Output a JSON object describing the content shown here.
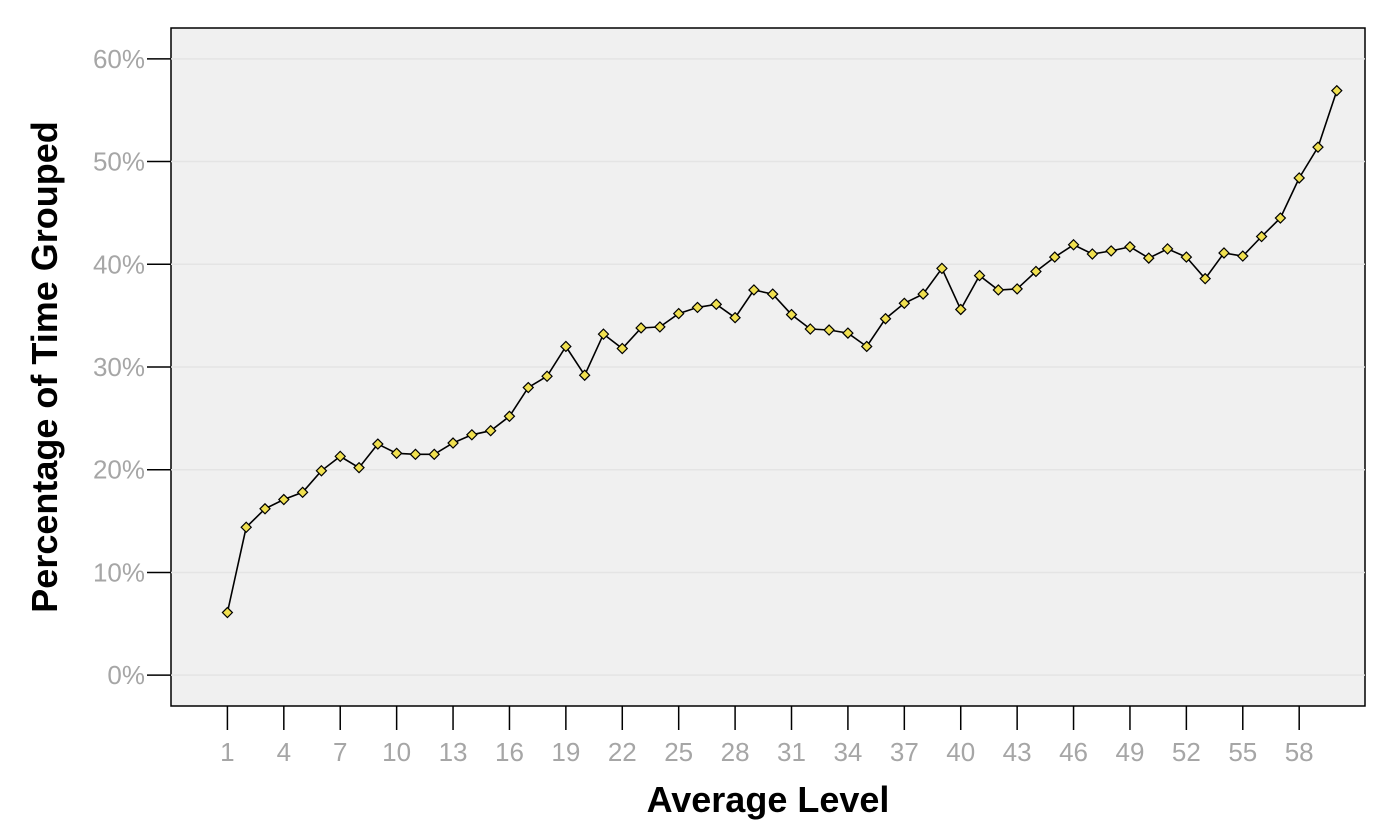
{
  "chart_data": {
    "type": "line",
    "title": "",
    "xlabel": "Average Level",
    "ylabel": "Percentage of Time Grouped",
    "x": [
      1,
      2,
      3,
      4,
      5,
      6,
      7,
      8,
      9,
      10,
      11,
      12,
      13,
      14,
      15,
      16,
      17,
      18,
      19,
      20,
      21,
      22,
      23,
      24,
      25,
      26,
      27,
      28,
      29,
      30,
      31,
      32,
      33,
      34,
      35,
      36,
      37,
      38,
      39,
      40,
      41,
      42,
      43,
      44,
      45,
      46,
      47,
      48,
      49,
      50,
      51,
      52,
      53,
      54,
      55,
      56,
      57,
      58,
      59,
      60
    ],
    "x_ticks": [
      1,
      4,
      7,
      10,
      13,
      16,
      19,
      22,
      25,
      28,
      31,
      34,
      37,
      40,
      43,
      46,
      49,
      52,
      55,
      58
    ],
    "y_ticks": [
      0,
      10,
      20,
      30,
      40,
      50,
      60
    ],
    "y_tick_labels": [
      "0%",
      "10%",
      "20%",
      "30%",
      "40%",
      "50%",
      "60%"
    ],
    "ylim": [
      -3,
      63
    ],
    "xlim": [
      -2,
      61.5
    ],
    "grid": true,
    "line_color": "#000000",
    "marker_color": "#f0e050",
    "plot_background": "#f0f0f0",
    "series": [
      {
        "values": [
          6.1,
          14.4,
          16.2,
          17.1,
          17.8,
          19.9,
          21.3,
          20.2,
          22.5,
          21.6,
          21.5,
          21.5,
          22.6,
          23.4,
          23.8,
          25.2,
          28.0,
          29.1,
          32.0,
          29.2,
          33.2,
          31.8,
          33.8,
          33.9,
          35.2,
          35.8,
          36.1,
          34.8,
          37.5,
          37.1,
          35.1,
          33.7,
          33.6,
          33.3,
          32.0,
          34.7,
          36.2,
          37.1,
          39.6,
          35.6,
          38.9,
          37.5,
          37.6,
          39.3,
          40.7,
          41.9,
          41.0,
          41.3,
          41.7,
          40.6,
          41.5,
          40.7,
          38.6,
          41.1,
          40.8,
          42.7,
          44.5,
          48.4,
          51.4,
          56.9
        ]
      }
    ]
  }
}
